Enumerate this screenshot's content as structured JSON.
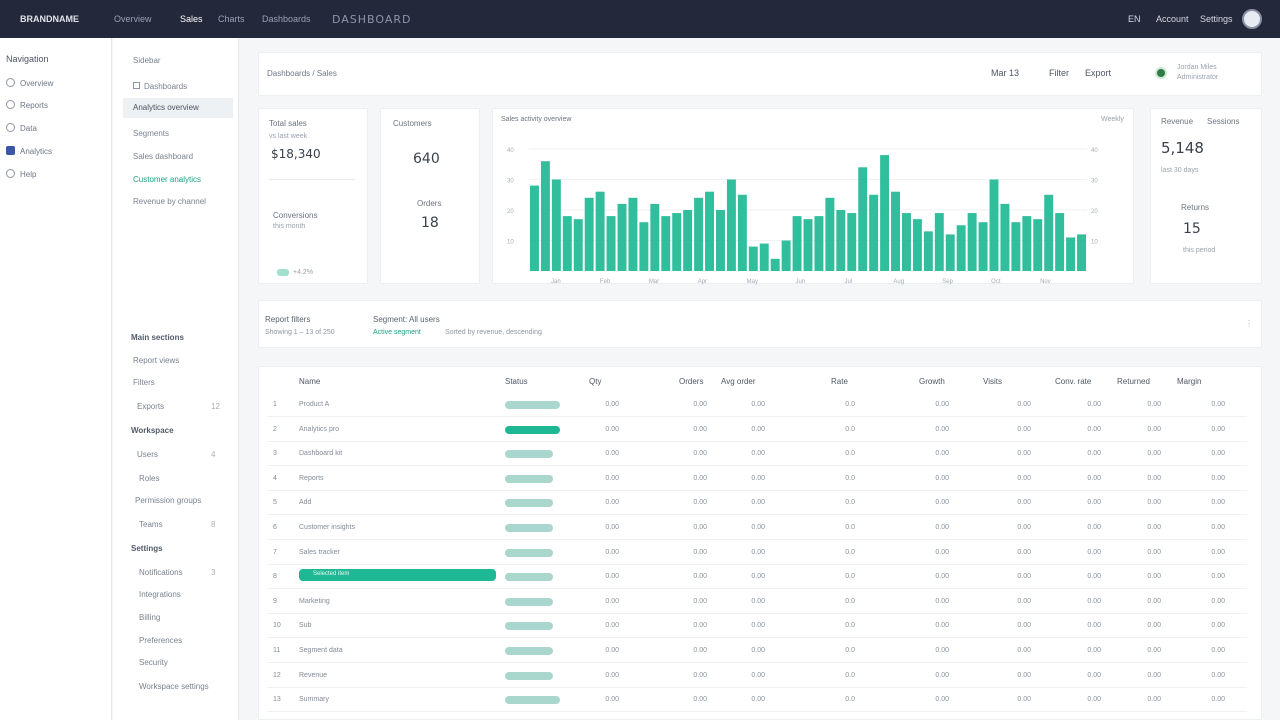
{
  "topbar": {
    "brand": "BRANDNAME",
    "nav": [
      "Overview",
      "Sales",
      "Charts",
      "Dashboards"
    ],
    "wordmark": "DASHBOARD",
    "right": [
      "EN",
      "Account",
      "Settings"
    ]
  },
  "rail": {
    "title": "Navigation",
    "items": [
      "Overview",
      "Reports",
      "Data",
      "Analytics",
      "Help"
    ]
  },
  "sidebar": {
    "top_items": [
      "Sidebar",
      "Dashboards",
      "Analytics overview",
      "Segments",
      "Sales dashboard",
      "Customer analytics",
      "Revenue by channel"
    ],
    "groups": [
      {
        "label": "Main sections",
        "items": [
          "Report views",
          "Filters",
          "Exports"
        ]
      },
      {
        "label": "Workspace",
        "items": [
          "Users",
          "Roles",
          "Permission groups",
          "Teams"
        ]
      },
      {
        "label": "Settings",
        "items": [
          "Notifications",
          "Integrations",
          "Billing",
          "Preferences",
          "Security",
          "Workspace settings"
        ]
      }
    ],
    "badges": [
      "12",
      "4",
      "8",
      "3"
    ]
  },
  "header": {
    "breadcrumb": "Dashboards / Sales",
    "controls": [
      "Mar 13",
      "Filter",
      "Export"
    ],
    "user_line1": "Jordan Miles",
    "user_line2": "Administrator"
  },
  "cards": {
    "kpi1": {
      "label": "Total sales",
      "sublabel": "vs last week",
      "value": "$18,340",
      "label2": "Conversions",
      "sub2": "this month",
      "foot": "+4.2%"
    },
    "kpi2": {
      "label": "Customers",
      "value": "640",
      "label2": "Orders",
      "value2": "18"
    },
    "kpi3": {
      "label": "Revenue",
      "sub": "Sessions",
      "value": "5,148",
      "sub2": "last 30 days",
      "label2": "Returns",
      "value2": "15",
      "sub3": "this period"
    }
  },
  "chart_data": {
    "type": "bar",
    "title": "Sales activity overview",
    "legend": "Weekly",
    "ylim": [
      0,
      40
    ],
    "yticks": [
      "40",
      "30",
      "20",
      "10"
    ],
    "xticks": [
      "Jan",
      "Feb",
      "Mar",
      "Apr",
      "May",
      "Jun",
      "Jul",
      "Aug",
      "Sep",
      "Oct",
      "Nov"
    ],
    "values": [
      28,
      36,
      30,
      18,
      17,
      24,
      26,
      18,
      22,
      24,
      16,
      22,
      18,
      19,
      20,
      24,
      26,
      20,
      30,
      25,
      8,
      9,
      4,
      10,
      18,
      17,
      18,
      24,
      20,
      19,
      34,
      25,
      38,
      26,
      19,
      17,
      13,
      19,
      12,
      15,
      19,
      16,
      30,
      22,
      16,
      18,
      17,
      25,
      19,
      11,
      12
    ]
  },
  "filters": {
    "f1": "Report filters",
    "f2": "Segment: All users",
    "f3": "Showing 1 – 13 of 250",
    "f4": "Active segment",
    "f5": "Sorted by revenue, descending",
    "f6": "⋮"
  },
  "table": {
    "headers": [
      "Name",
      "Status",
      "Qty",
      "Orders",
      "Avg order",
      "Rate",
      "Growth",
      "Visits",
      "Conv. rate",
      "Returned",
      "Margin"
    ],
    "rows": [
      {
        "n": "1",
        "name": "Product A",
        "v": [
          "0.00",
          "0.00",
          "0.00",
          "0.0",
          "0.00",
          "0.00",
          "0.00",
          "0.00",
          "0.00"
        ],
        "bar": 0.55,
        "strong": false
      },
      {
        "n": "2",
        "name": "Analytics pro",
        "v": [
          "0.00",
          "0.00",
          "0.00",
          "0.0",
          "0.00",
          "0.00",
          "0.00",
          "0.00",
          "0.00"
        ],
        "bar": 0.55,
        "strong": true
      },
      {
        "n": "3",
        "name": "Dashboard kit",
        "v": [
          "0.00",
          "0.00",
          "0.00",
          "0.0",
          "0.00",
          "0.00",
          "0.00",
          "0.00",
          "0.00"
        ],
        "bar": 0.48,
        "strong": false
      },
      {
        "n": "4",
        "name": "Reports",
        "v": [
          "0.00",
          "0.00",
          "0.00",
          "0.0",
          "0.00",
          "0.00",
          "0.00",
          "0.00",
          "0.00"
        ],
        "bar": 0.48,
        "strong": false
      },
      {
        "n": "5",
        "name": "Add",
        "v": [
          "0.00",
          "0.00",
          "0.00",
          "0.0",
          "0.00",
          "0.00",
          "0.00",
          "0.00",
          "0.00"
        ],
        "bar": 0.48,
        "strong": false
      },
      {
        "n": "6",
        "name": "Customer insights",
        "v": [
          "0.00",
          "0.00",
          "0.00",
          "0.0",
          "0.00",
          "0.00",
          "0.00",
          "0.00",
          "0.00"
        ],
        "bar": 0.48,
        "strong": false
      },
      {
        "n": "7",
        "name": "Sales tracker",
        "v": [
          "0.00",
          "0.00",
          "0.00",
          "0.0",
          "0.00",
          "0.00",
          "0.00",
          "0.00",
          "0.00"
        ],
        "bar": 0.48,
        "strong": false
      },
      {
        "n": "8",
        "name": "Selected item",
        "v": [
          "0.00",
          "0.00",
          "0.00",
          "0.0",
          "0.00",
          "0.00",
          "0.00",
          "0.00",
          "0.00"
        ],
        "bar": 0.48,
        "strong": false,
        "highlight": true
      },
      {
        "n": "9",
        "name": "Marketing",
        "v": [
          "0.00",
          "0.00",
          "0.00",
          "0.0",
          "0.00",
          "0.00",
          "0.00",
          "0.00",
          "0.00"
        ],
        "bar": 0.48,
        "strong": false
      },
      {
        "n": "10",
        "name": "Sub",
        "v": [
          "0.00",
          "0.00",
          "0.00",
          "0.0",
          "0.00",
          "0.00",
          "0.00",
          "0.00",
          "0.00"
        ],
        "bar": 0.48,
        "strong": false
      },
      {
        "n": "11",
        "name": "Segment data",
        "v": [
          "0.00",
          "0.00",
          "0.00",
          "0.0",
          "0.00",
          "0.00",
          "0.00",
          "0.00",
          "0.00"
        ],
        "bar": 0.48,
        "strong": false
      },
      {
        "n": "12",
        "name": "Revenue",
        "v": [
          "0.00",
          "0.00",
          "0.00",
          "0.0",
          "0.00",
          "0.00",
          "0.00",
          "0.00",
          "0.00"
        ],
        "bar": 0.48,
        "strong": false
      },
      {
        "n": "13",
        "name": "Summary",
        "v": [
          "0.00",
          "0.00",
          "0.00",
          "0.0",
          "0.00",
          "0.00",
          "0.00",
          "0.00",
          "0.00"
        ],
        "bar": 0.55,
        "strong": false
      }
    ]
  },
  "colors": {
    "accent": "#1fb894",
    "topbar": "#23283a",
    "bar_light": "#a9d6cd"
  }
}
